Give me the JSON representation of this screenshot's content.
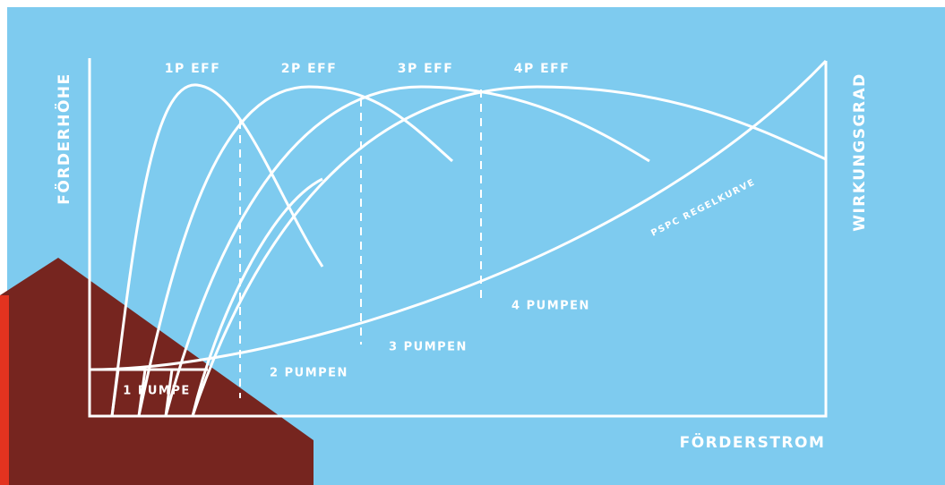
{
  "y_axis_label": "FÖRDERHÖHE",
  "y2_axis_label": "WIRKUNGSGRAD",
  "x_axis_label": "FÖRDERSTROM",
  "efficiency_labels": [
    "1P EFF",
    "2P EFF",
    "3P EFF",
    "4P EFF"
  ],
  "pump_labels": [
    "1 PUMPE",
    "2 PUMPEN",
    "3 PUMPEN",
    "4 PUMPEN"
  ],
  "control_curve_label": "PSPC REGELKURVE"
}
